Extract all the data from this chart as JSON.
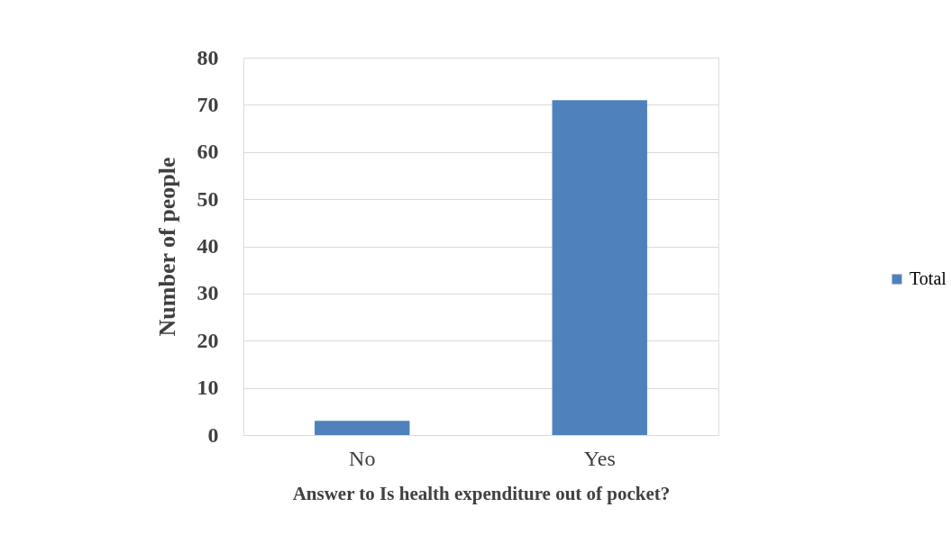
{
  "chart_data": {
    "type": "bar",
    "xlabel": "Answer to Is health expenditure out of pocket?",
    "ylabel": "Number of people",
    "categories": [
      "No",
      "Yes"
    ],
    "series": [
      {
        "name": "Total",
        "color": "#4f81bd",
        "values": [
          3,
          71
        ]
      }
    ],
    "ylim": [
      0,
      80
    ],
    "yticks": [
      0,
      10,
      20,
      30,
      40,
      50,
      60,
      70,
      80
    ],
    "grid": "y",
    "legend": "right"
  }
}
